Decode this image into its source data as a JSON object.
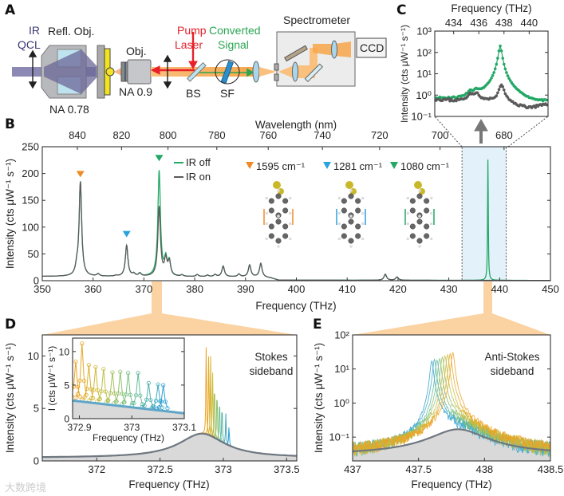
{
  "panel_labels": {
    "a": "A",
    "b": "B",
    "c": "C",
    "d": "D",
    "e": "E"
  },
  "panel_a": {
    "ir": "IR",
    "qcl": "QCL",
    "refl_obj": "Refl. Obj.",
    "na_refl": "NA 0.78",
    "obj": "Obj.",
    "na_obj": "NA 0.9",
    "pump": "Pump",
    "laser": "Laser",
    "converted": "Converted",
    "signal": "Signal",
    "bs": "BS",
    "sf": "SF",
    "spectrometer": "Spectrometer",
    "ccd": "CCD"
  },
  "colors": {
    "ir_on": "#23a866",
    "ir_off": "#5a5a5a",
    "orange": "#f08a24",
    "blue": "#2aa3dc",
    "green": "#23a866",
    "pump": "#e8202a",
    "signal": "#2aa653",
    "beam": "#f9c07e",
    "qcl": "#8d89b5",
    "highlight": "#e3f1fa",
    "connector": "#fbd3a2",
    "area": "#d9d9d9"
  },
  "watermark": "大数跨境",
  "chart_data": [
    {
      "panel": "B",
      "type": "line",
      "xlabel": "Frequency (THz)",
      "ylabel": "Intensity (cts μW⁻¹ s⁻¹)",
      "x2label": "Wavelength (nm)",
      "xlim": [
        350,
        450
      ],
      "ylim": [
        0,
        250
      ],
      "xticks": [
        350,
        360,
        370,
        380,
        390,
        400,
        410,
        420,
        430,
        440,
        450
      ],
      "xtick_labels": [
        "350",
        "360",
        "370",
        "380",
        "390",
        "400",
        "410",
        "420",
        "430",
        "440",
        "450"
      ],
      "yticks": [
        0,
        50,
        100,
        150,
        200,
        250
      ],
      "ytick_labels": [
        "0",
        "50",
        "100",
        "150",
        "200",
        "250"
      ],
      "x2ticks": [
        840,
        820,
        800,
        780,
        760,
        740,
        720,
        700,
        680
      ],
      "x2tick_labels": [
        "840",
        "820",
        "800",
        "780",
        "760",
        "740",
        "720",
        "700",
        "680"
      ],
      "baseline": [
        [
          350,
          8
        ],
        [
          393,
          7
        ],
        [
          395,
          5
        ],
        [
          396.5,
          1
        ],
        [
          450,
          0.6
        ]
      ],
      "series": [
        {
          "name": "IR off",
          "color": "#5a5a5a",
          "peaks": [
            [
              356.8,
              22
            ],
            [
              357.5,
              183
            ],
            [
              361,
              12
            ],
            [
              364.5,
              9
            ],
            [
              366.6,
              65
            ],
            [
              368,
              12
            ],
            [
              369.2,
              13
            ],
            [
              373,
              137
            ],
            [
              374.3,
              38
            ],
            [
              375,
              34
            ],
            [
              377.5,
              10
            ],
            [
              380.5,
              11
            ],
            [
              382.5,
              10
            ],
            [
              384,
              11
            ],
            [
              385.6,
              27
            ],
            [
              388.7,
              12
            ],
            [
              390.8,
              29
            ],
            [
              393,
              32
            ],
            [
              417.5,
              12
            ],
            [
              419.8,
              7
            ]
          ]
        },
        {
          "name": "IR on",
          "color": "#23a866",
          "peaks": [
            [
              356.8,
              22
            ],
            [
              357.5,
              183
            ],
            [
              361,
              12
            ],
            [
              364.5,
              9
            ],
            [
              366.6,
              65
            ],
            [
              368,
              12
            ],
            [
              369.2,
              13
            ],
            [
              373,
              204
            ],
            [
              374.3,
              38
            ],
            [
              375,
              34
            ],
            [
              377.5,
              10
            ],
            [
              380.5,
              11
            ],
            [
              382.5,
              10
            ],
            [
              384,
              11
            ],
            [
              385.6,
              27
            ],
            [
              388.7,
              12
            ],
            [
              390.8,
              29
            ],
            [
              393,
              32
            ],
            [
              417.5,
              12
            ],
            [
              419.8,
              7
            ],
            [
              437.7,
              226
            ]
          ]
        }
      ],
      "mode_markers": [
        {
          "label": "1595 cm⁻¹",
          "x": 357.5,
          "color": "#f08a24"
        },
        {
          "label": "1281 cm⁻¹",
          "x": 366.6,
          "color": "#2aa3dc"
        },
        {
          "label": "1080 cm⁻¹",
          "x": 373.0,
          "color": "#23a866"
        }
      ],
      "legend": [
        "IR on",
        "IR off"
      ],
      "legend_position": "top-center",
      "highlight_region": [
        432.6,
        441.3
      ]
    },
    {
      "panel": "C",
      "type": "line",
      "log_y": true,
      "xlabel": "Frequency (THz)",
      "ylabel": "Intensity (cts μW⁻¹ s⁻¹)",
      "xlim": [
        432.5,
        441.5
      ],
      "ylim": [
        0.1,
        1000
      ],
      "xticks": [
        434,
        436,
        438,
        440
      ],
      "xtick_labels": [
        "434",
        "436",
        "438",
        "440"
      ],
      "yticks": [
        1000,
        100,
        10,
        1,
        0.1
      ],
      "ytick_labels": [
        "10³",
        "10²",
        "10¹",
        "10⁰",
        "10⁻¹"
      ],
      "baseline": [
        [
          432.5,
          0.65
        ],
        [
          434,
          0.55
        ],
        [
          436.5,
          0.55
        ],
        [
          439,
          0.3
        ],
        [
          440,
          0.25
        ],
        [
          441.5,
          0.35
        ]
      ],
      "series": [
        {
          "name": "IR off",
          "color": "#5a5a5a",
          "peaks": [
            [
              435.3,
              0.6
            ],
            [
              435.8,
              0.7
            ],
            [
              437.8,
              2.6
            ]
          ]
        },
        {
          "name": "IR on",
          "color": "#23a866",
          "peaks": [
            [
              435.3,
              0.6
            ],
            [
              435.8,
              0.7
            ],
            [
              437.7,
              200
            ]
          ]
        }
      ]
    },
    {
      "panel": "D",
      "type": "line",
      "xlabel": "Frequency (THz)",
      "ylabel": "Intensity (cts μW⁻¹ s⁻¹)",
      "xlim": [
        371.57,
        373.58
      ],
      "ylim": [
        0,
        12
      ],
      "xticks": [
        372,
        372.5,
        373,
        373.5
      ],
      "xtick_labels": [
        "372",
        "372.5",
        "373",
        "373.5"
      ],
      "yticks": [
        0,
        5,
        10
      ],
      "ytick_labels": [
        "0",
        "5",
        "10"
      ],
      "annotation": [
        "Stokes",
        "sideband"
      ],
      "ir_off": {
        "base": 0.3,
        "center": 372.83,
        "height": 2.3
      },
      "spikes": [
        [
          372.865,
          11.2
        ],
        [
          372.885,
          10.3
        ],
        [
          372.9,
          9.6
        ],
        [
          372.915,
          8.8
        ],
        [
          372.93,
          8.0
        ],
        [
          372.95,
          7.3
        ],
        [
          372.97,
          6.6
        ],
        [
          372.99,
          6.0
        ],
        [
          373.02,
          4.9
        ],
        [
          373.045,
          3.9
        ]
      ]
    },
    {
      "panel": "D-inset",
      "type": "line",
      "xlabel": "Frequency (THz)",
      "ylabel": "I (cts μW⁻¹ s⁻¹)",
      "xlim": [
        372.887,
        373.1
      ],
      "ylim": [
        0,
        12
      ],
      "xticks": [
        372.9,
        373,
        373.1
      ],
      "xtick_labels": [
        "372.9",
        "373",
        "373.1"
      ],
      "yticks": [
        0,
        5,
        10
      ],
      "ytick_labels": [
        "0",
        "5",
        "10"
      ],
      "baseline": [
        [
          372.887,
          2.7
        ],
        [
          373.1,
          0.8
        ]
      ],
      "spikes": [
        [
          372.893,
          8.5
        ],
        [
          372.905,
          11.2
        ],
        [
          372.918,
          8.0
        ],
        [
          372.931,
          7.7
        ],
        [
          372.946,
          7.4
        ],
        [
          372.963,
          6.9
        ],
        [
          372.978,
          7.0
        ],
        [
          372.993,
          6.8
        ],
        [
          373.012,
          6.8
        ],
        [
          373.032,
          5.3
        ],
        [
          373.05,
          5.1
        ],
        [
          373.06,
          5.0
        ]
      ]
    },
    {
      "panel": "E",
      "type": "line",
      "log_y": true,
      "xlabel": "Frequency (THz)",
      "ylabel": "Intensity (cts μW⁻¹ s⁻¹)",
      "xlim": [
        437,
        438.5
      ],
      "ylim": [
        0.02,
        100
      ],
      "xticks": [
        437,
        437.5,
        438,
        438.5
      ],
      "xtick_labels": [
        "437",
        "437.5",
        "438",
        "438.5"
      ],
      "yticks": [
        100,
        10,
        1,
        0.1
      ],
      "ytick_labels": [
        "10²",
        "10¹",
        "10⁰",
        "10⁻¹"
      ],
      "annotation": [
        "Anti-Stokes",
        "sideband"
      ],
      "ir_off": {
        "base": 0.03,
        "center": 437.8,
        "height": 0.14
      },
      "spikes": [
        [
          437.6,
          17
        ],
        [
          437.62,
          19
        ],
        [
          437.64,
          18
        ],
        [
          437.66,
          20
        ],
        [
          437.68,
          22
        ],
        [
          437.7,
          24
        ],
        [
          437.72,
          26
        ],
        [
          437.74,
          28
        ],
        [
          437.76,
          30
        ]
      ]
    }
  ]
}
